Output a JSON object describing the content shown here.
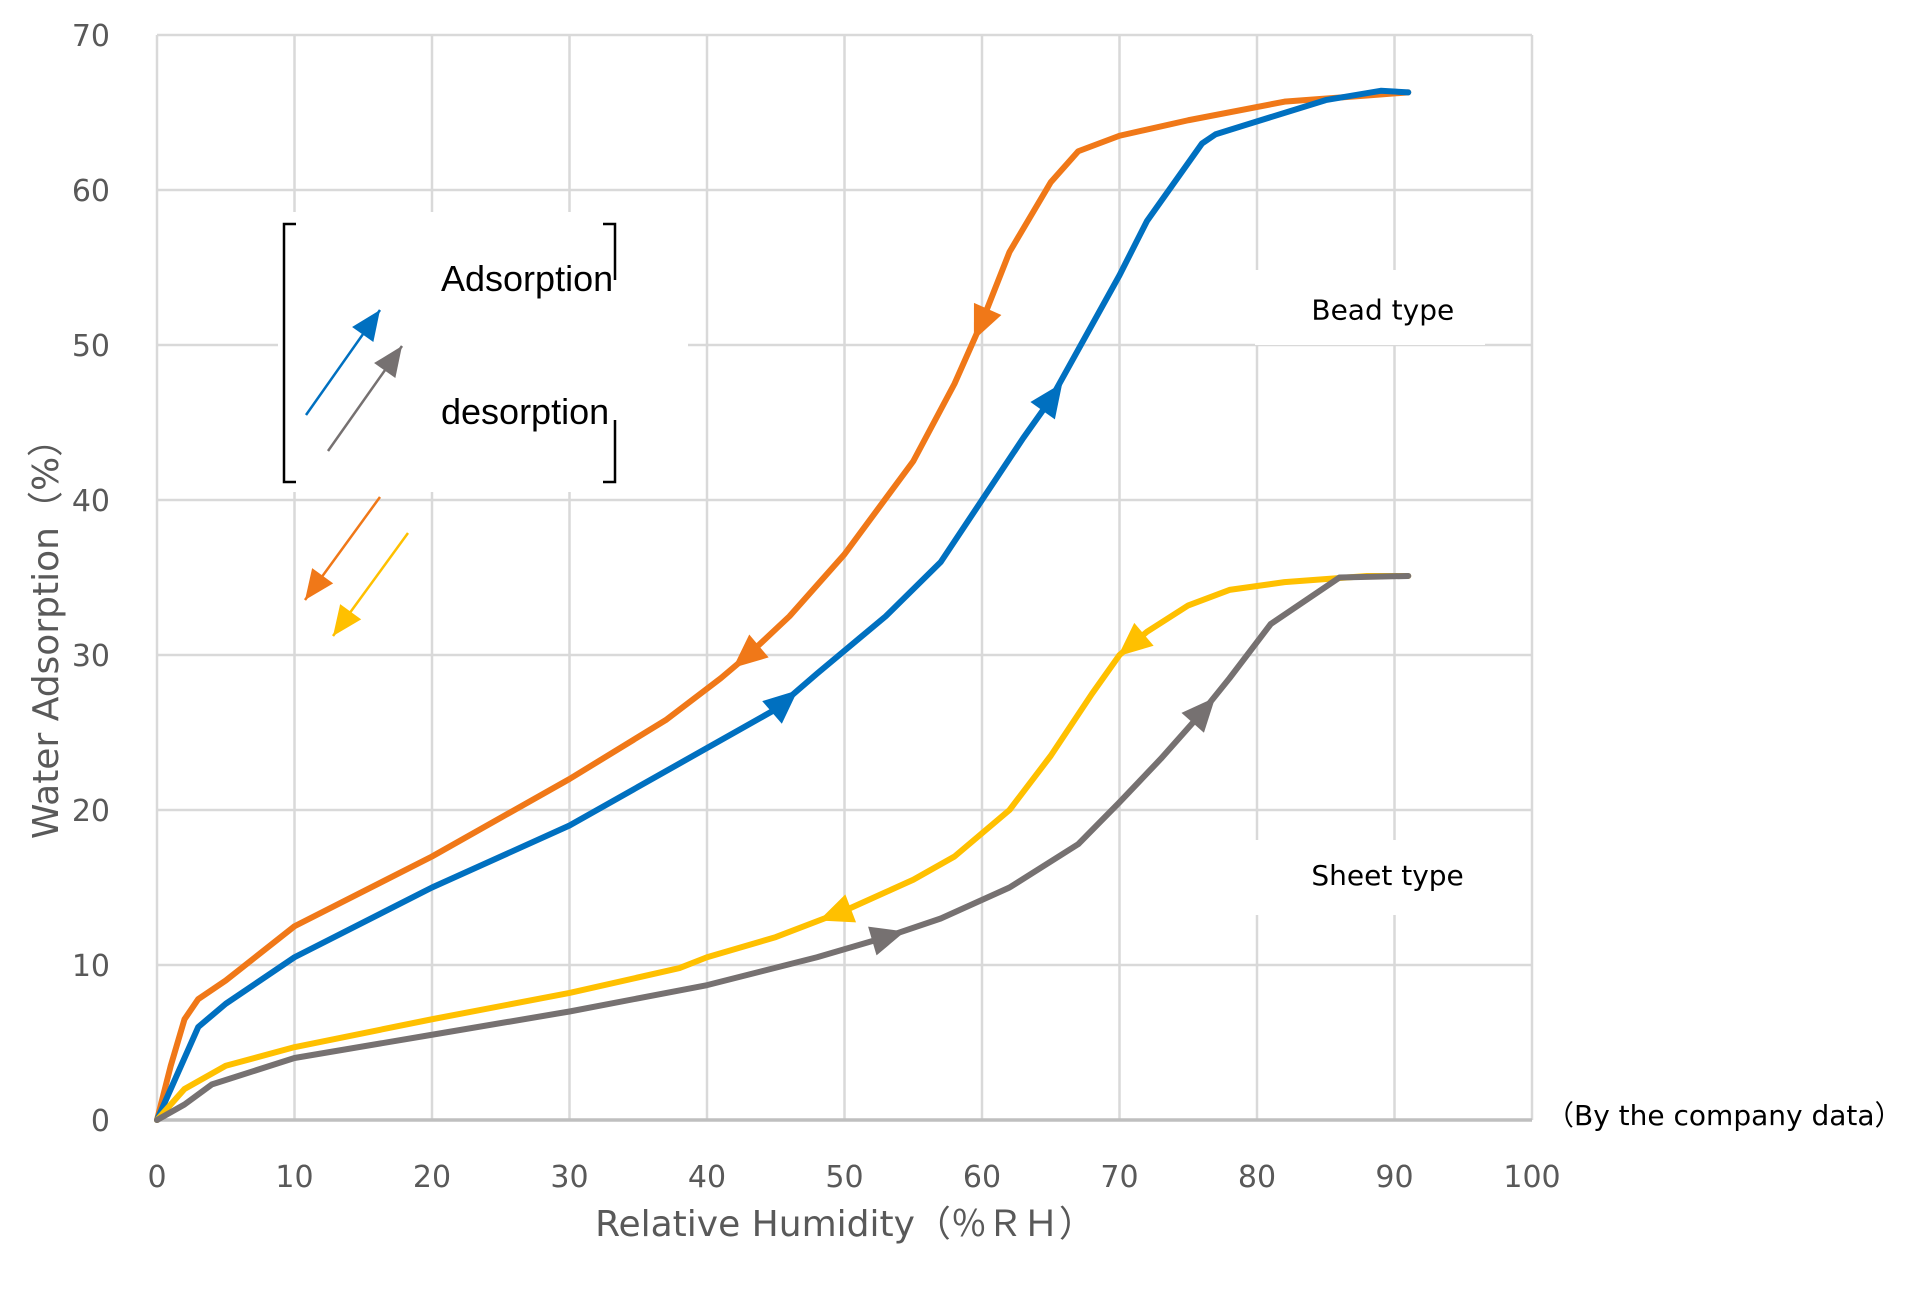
{
  "chart_data": {
    "type": "line",
    "xlabel": "Relative Humidity（％ＲＨ）",
    "ylabel": "Water Adsorption（%）",
    "xlim": [
      0,
      100
    ],
    "ylim": [
      0,
      70
    ],
    "xticks": [
      0,
      10,
      20,
      30,
      40,
      50,
      60,
      70,
      80,
      90,
      100
    ],
    "yticks": [
      0,
      10,
      20,
      30,
      40,
      50,
      60,
      70
    ],
    "grid": true,
    "note": "（By the company data）",
    "legend": {
      "placement": "top-left",
      "entries": [
        {
          "label": "Adsorption",
          "colors": [
            "#0070C0",
            "#767171"
          ]
        },
        {
          "label": "desorption",
          "colors": [
            "#F07818",
            "#FFC000"
          ]
        }
      ]
    },
    "annotations": [
      {
        "text": "Bead type",
        "x": 82.5,
        "y": 52.3
      },
      {
        "text": "Sheet type",
        "x": 82.5,
        "y": 15.8
      }
    ],
    "series": [
      {
        "group": "Bead type",
        "direction": "desorption",
        "color": "#F07818",
        "x": [
          0,
          1,
          2,
          3,
          5,
          10,
          20,
          30,
          37,
          41,
          43,
          46,
          50,
          55,
          58,
          60,
          62,
          65,
          67,
          70,
          75,
          82,
          88,
          91
        ],
        "y": [
          0,
          3.5,
          6.5,
          7.8,
          9,
          12.5,
          17,
          22,
          25.8,
          28.5,
          30,
          32.5,
          36.5,
          42.5,
          47.5,
          51.5,
          56,
          60.5,
          62.5,
          63.5,
          64.5,
          65.7,
          66.1,
          66.3
        ],
        "arrows_at_x": [
          60,
          43
        ]
      },
      {
        "group": "Bead type",
        "direction": "adsorption",
        "color": "#0070C0",
        "x": [
          0,
          1.5,
          3,
          5,
          10,
          20,
          30,
          38,
          45,
          48,
          53,
          57,
          60,
          63,
          65,
          70,
          72,
          76,
          77,
          85,
          89,
          91
        ],
        "y": [
          0,
          3,
          6,
          7.5,
          10.5,
          15,
          19,
          23,
          26.5,
          28.8,
          32.5,
          36,
          40,
          44,
          46.5,
          54.5,
          58,
          63,
          63.6,
          65.8,
          66.4,
          66.3
        ],
        "arrows_at_x": [
          45.5,
          65
        ]
      },
      {
        "group": "Sheet type",
        "direction": "desorption",
        "color": "#FFC000",
        "x": [
          0,
          2,
          5,
          10,
          20,
          30,
          38,
          40,
          45,
          50,
          55,
          58,
          62,
          65,
          68,
          70,
          72,
          75,
          78,
          82,
          88,
          91
        ],
        "y": [
          0,
          2,
          3.5,
          4.7,
          6.5,
          8.2,
          9.8,
          10.5,
          11.8,
          13.5,
          15.5,
          17,
          20,
          23.5,
          27.5,
          30,
          31.5,
          33.2,
          34.2,
          34.7,
          35.1,
          35.1
        ],
        "arrows_at_x": [
          71,
          49.5
        ]
      },
      {
        "group": "Sheet type",
        "direction": "adsorption",
        "color": "#767171",
        "x": [
          0,
          2,
          4,
          10,
          20,
          30,
          40,
          48,
          53,
          57,
          62,
          67,
          70,
          73,
          76,
          78,
          81,
          86,
          91
        ],
        "y": [
          0,
          1,
          2.3,
          4,
          5.5,
          7,
          8.7,
          10.5,
          11.8,
          13,
          15,
          17.8,
          20.5,
          23.3,
          26.3,
          28.5,
          32,
          35,
          35.1
        ],
        "arrows_at_x": [
          53,
          76
        ]
      }
    ]
  }
}
